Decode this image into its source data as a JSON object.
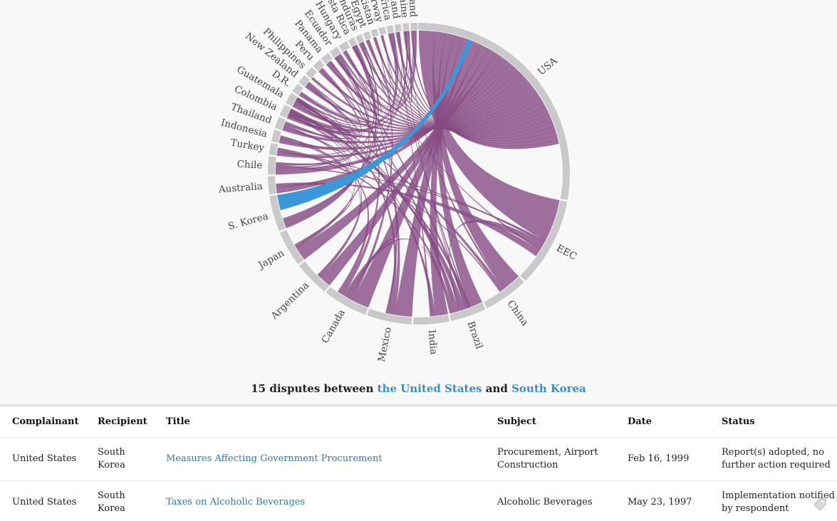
{
  "chart_data": {
    "type": "chord",
    "title": "",
    "groups": [
      {
        "name": "USA",
        "share": 0.29
      },
      {
        "name": "EEC",
        "share": 0.1
      },
      {
        "name": "China",
        "share": 0.05
      },
      {
        "name": "Brazil",
        "share": 0.04
      },
      {
        "name": "India",
        "share": 0.04
      },
      {
        "name": "Mexico",
        "share": 0.05
      },
      {
        "name": "Canada",
        "share": 0.05
      },
      {
        "name": "Argentina",
        "share": 0.04
      },
      {
        "name": "Japan",
        "share": 0.04
      },
      {
        "name": "S. Korea",
        "share": 0.04
      },
      {
        "name": "Australia",
        "share": 0.02
      },
      {
        "name": "Chile",
        "share": 0.02
      },
      {
        "name": "Turkey",
        "share": 0.013
      },
      {
        "name": "Indonesia",
        "share": 0.013
      },
      {
        "name": "Thailand",
        "share": 0.013
      },
      {
        "name": "Colombia",
        "share": 0.013
      },
      {
        "name": "Guatemala",
        "share": 0.013
      },
      {
        "name": "D.R.",
        "share": 0.01
      },
      {
        "name": "New Zealand",
        "share": 0.01
      },
      {
        "name": "Philippines",
        "share": 0.01
      },
      {
        "name": "Peru",
        "share": 0.01
      },
      {
        "name": "Panama",
        "share": 0.01
      },
      {
        "name": "Ecuador",
        "share": 0.01
      },
      {
        "name": "Hungary",
        "share": 0.01
      },
      {
        "name": "Costa Rica",
        "share": 0.007
      },
      {
        "name": "Honduras",
        "share": 0.007
      },
      {
        "name": "Egypt",
        "share": 0.007
      },
      {
        "name": "Pakistan",
        "share": 0.007
      },
      {
        "name": "Norway",
        "share": 0.007
      },
      {
        "name": "S. Africa",
        "share": 0.007
      },
      {
        "name": "Switzerland",
        "share": 0.007
      },
      {
        "name": "Ukraine",
        "share": 0.007
      },
      {
        "name": "Poland",
        "share": 0.007
      }
    ],
    "highlight": {
      "from": "USA",
      "to": "S. Korea",
      "count": 15
    },
    "colors": {
      "chord": "#8a4f88",
      "highlight": "#3c97d8",
      "arc": "#c9c9c9"
    }
  },
  "summary": {
    "count_text": "15 disputes between",
    "country_a": "the United States",
    "and_text": "and",
    "country_b": "South Korea"
  },
  "table": {
    "columns": [
      "Complainant",
      "Recipient",
      "Title",
      "Subject",
      "Date",
      "Status"
    ],
    "rows": [
      {
        "complainant": "United States",
        "recipient": "South Korea",
        "title": "Measures Affecting Government Procurement",
        "subject": "Procurement, Airport Construction",
        "date": "Feb 16, 1999",
        "status": "Report(s) adopted, no further action required"
      },
      {
        "complainant": "United States",
        "recipient": "South Korea",
        "title": "Taxes on Alcoholic Beverages",
        "subject": "Alcoholic Beverages",
        "date": "May 23, 1997",
        "status": "Implementation notified by respondent"
      }
    ]
  },
  "icons": {
    "corner": "tag-icon"
  }
}
